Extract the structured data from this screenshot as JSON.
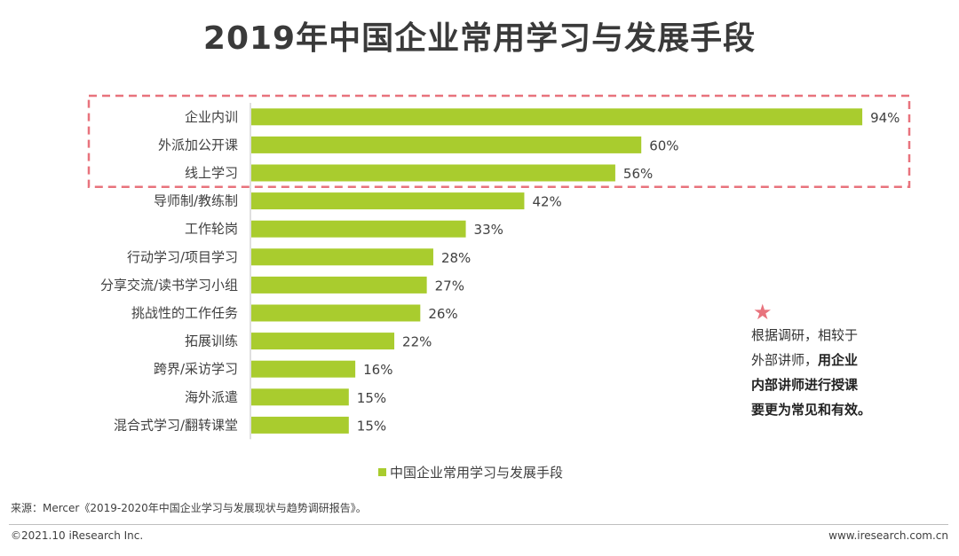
{
  "title": "2019年中国企业常用学习与发展手段",
  "chart_data": {
    "type": "bar",
    "orientation": "horizontal",
    "categories": [
      "企业内训",
      "外派加公开课",
      "线上学习",
      "导师制/教练制",
      "工作轮岗",
      "行动学习/项目学习",
      "分享交流/读书学习小组",
      "挑战性的工作任务",
      "拓展训练",
      "跨界/采访学习",
      "海外派遣",
      "混合式学习/翻转课堂"
    ],
    "series": [
      {
        "name": "中国企业常用学习与发展手段",
        "values": [
          94,
          60,
          56,
          42,
          33,
          28,
          27,
          26,
          22,
          16,
          15,
          15
        ],
        "labels": [
          "94%",
          "60%",
          "56%",
          "42%",
          "33%",
          "28%",
          "27%",
          "26%",
          "22%",
          "16%",
          "15%",
          "15%"
        ]
      }
    ],
    "xlim": [
      0,
      100
    ],
    "highlight_top_n": 3,
    "legend_position": "bottom",
    "colors": {
      "bar": "#a9cc2e",
      "highlight_box": "#e8737d",
      "axis": "#bfbfbf"
    }
  },
  "note": {
    "star": "★",
    "line1": "根据调研，相较于",
    "line2_normal": "外部讲师，",
    "line2_bold": "用企业",
    "line3": "内部讲师进行授课",
    "line4": "要更为常见和有效。"
  },
  "source": "来源：Mercer《2019-2020年中国企业学习与发展现状与趋势调研报告》。",
  "footer": {
    "copyright": "©2021.10 iResearch Inc.",
    "website": "www.iresearch.com.cn"
  }
}
